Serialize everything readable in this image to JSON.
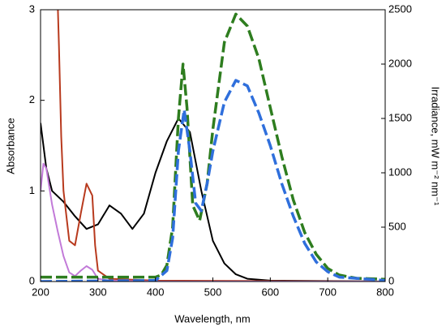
{
  "chart_data": {
    "type": "line",
    "xlabel": "Wavelength, nm",
    "ylabel": "Absorbance",
    "y2label": "Irradiance, mW m⁻² nm⁻¹",
    "xlim": [
      200,
      800
    ],
    "xticks": [
      200,
      300,
      400,
      500,
      600,
      700,
      800
    ],
    "ylim": [
      0,
      3
    ],
    "yticks": [
      0,
      1,
      2,
      3
    ],
    "y2lim": [
      0,
      2500
    ],
    "y2ticks": [
      0,
      500,
      1000,
      1500,
      2000,
      2500
    ],
    "series": [
      {
        "color": "#000000",
        "style": "solid",
        "axis": "y",
        "x": [
          200,
          210,
          220,
          240,
          260,
          280,
          300,
          320,
          340,
          360,
          380,
          400,
          420,
          440,
          460,
          480,
          500,
          520,
          540,
          560,
          600,
          800
        ],
        "values": [
          1.75,
          1.25,
          1.0,
          0.88,
          0.72,
          0.58,
          0.63,
          0.84,
          0.75,
          0.58,
          0.75,
          1.2,
          1.55,
          1.8,
          1.65,
          1.0,
          0.45,
          0.2,
          0.08,
          0.03,
          0.01,
          0
        ]
      },
      {
        "color": "#b83a1e",
        "style": "solid",
        "axis": "y",
        "x": [
          228,
          232,
          236,
          240,
          250,
          260,
          270,
          280,
          290,
          295,
          300,
          320,
          400,
          800
        ],
        "values": [
          3.5,
          2.6,
          1.6,
          1.0,
          0.45,
          0.4,
          0.75,
          1.08,
          0.95,
          0.4,
          0.12,
          0.03,
          0.01,
          0
        ]
      },
      {
        "color": "#c27ad8",
        "style": "solid",
        "axis": "y",
        "x": [
          200,
          205,
          210,
          220,
          230,
          240,
          250,
          260,
          270,
          280,
          290,
          300,
          320,
          400,
          800
        ],
        "values": [
          1.0,
          1.3,
          1.25,
          0.85,
          0.55,
          0.28,
          0.1,
          0.06,
          0.12,
          0.17,
          0.13,
          0.03,
          0.01,
          0,
          0
        ]
      },
      {
        "color": "#2e7d1f",
        "style": "dashed",
        "axis": "y2",
        "x": [
          200,
          300,
          400,
          410,
          420,
          430,
          440,
          448,
          455,
          465,
          477,
          490,
          500,
          520,
          540,
          560,
          580,
          600,
          620,
          640,
          660,
          680,
          700,
          720,
          750,
          800
        ],
        "values": [
          40,
          40,
          40,
          60,
          150,
          500,
          1500,
          2000,
          1600,
          700,
          560,
          900,
          1400,
          2200,
          2460,
          2350,
          2050,
          1600,
          1150,
          750,
          450,
          250,
          120,
          60,
          30,
          20
        ]
      },
      {
        "color": "#2f6fdc",
        "style": "dashed",
        "axis": "y2",
        "x": [
          200,
          400,
          420,
          430,
          440,
          450,
          460,
          470,
          480,
          490,
          500,
          520,
          540,
          560,
          580,
          600,
          620,
          640,
          660,
          680,
          700,
          720,
          800
        ],
        "values": [
          0,
          10,
          100,
          400,
          1200,
          1580,
          1200,
          720,
          650,
          900,
          1200,
          1650,
          1850,
          1800,
          1550,
          1250,
          900,
          600,
          350,
          180,
          90,
          40,
          10
        ]
      }
    ]
  }
}
